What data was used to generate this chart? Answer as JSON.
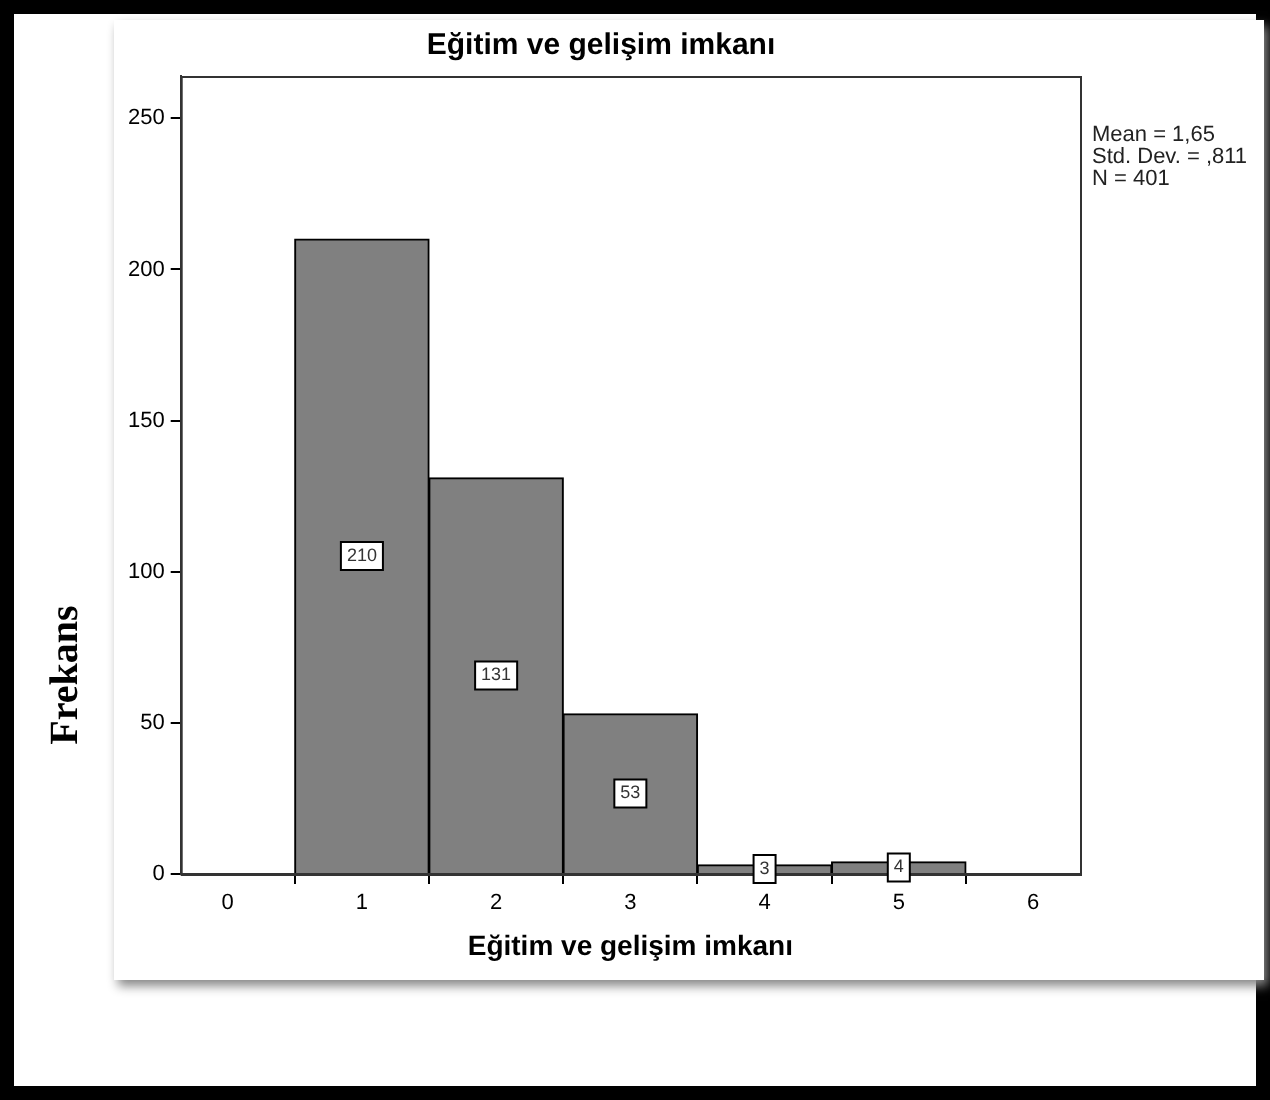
{
  "chart_data": {
    "type": "histogram",
    "title": "Eğitim ve gelişim imkanı",
    "xlabel": "Eğitim ve gelişim imkanı",
    "ylabel": "Frekans",
    "bins": [
      0.5,
      1.5,
      2.5,
      3.5,
      4.5,
      5.5
    ],
    "values": [
      210,
      131,
      53,
      3,
      4
    ],
    "color": "#808080",
    "xlim": [
      -0.35,
      6.35
    ],
    "xticks": [
      0,
      1,
      2,
      3,
      4,
      5,
      6
    ],
    "ylim": [
      0,
      264
    ],
    "yticks": [
      0,
      50,
      100,
      150,
      200,
      250
    ],
    "data_labels": true,
    "grid": false,
    "legend": false,
    "annotations": [
      "Mean = 1,65",
      "Std. Dev. = ,811",
      "N = 401"
    ]
  }
}
